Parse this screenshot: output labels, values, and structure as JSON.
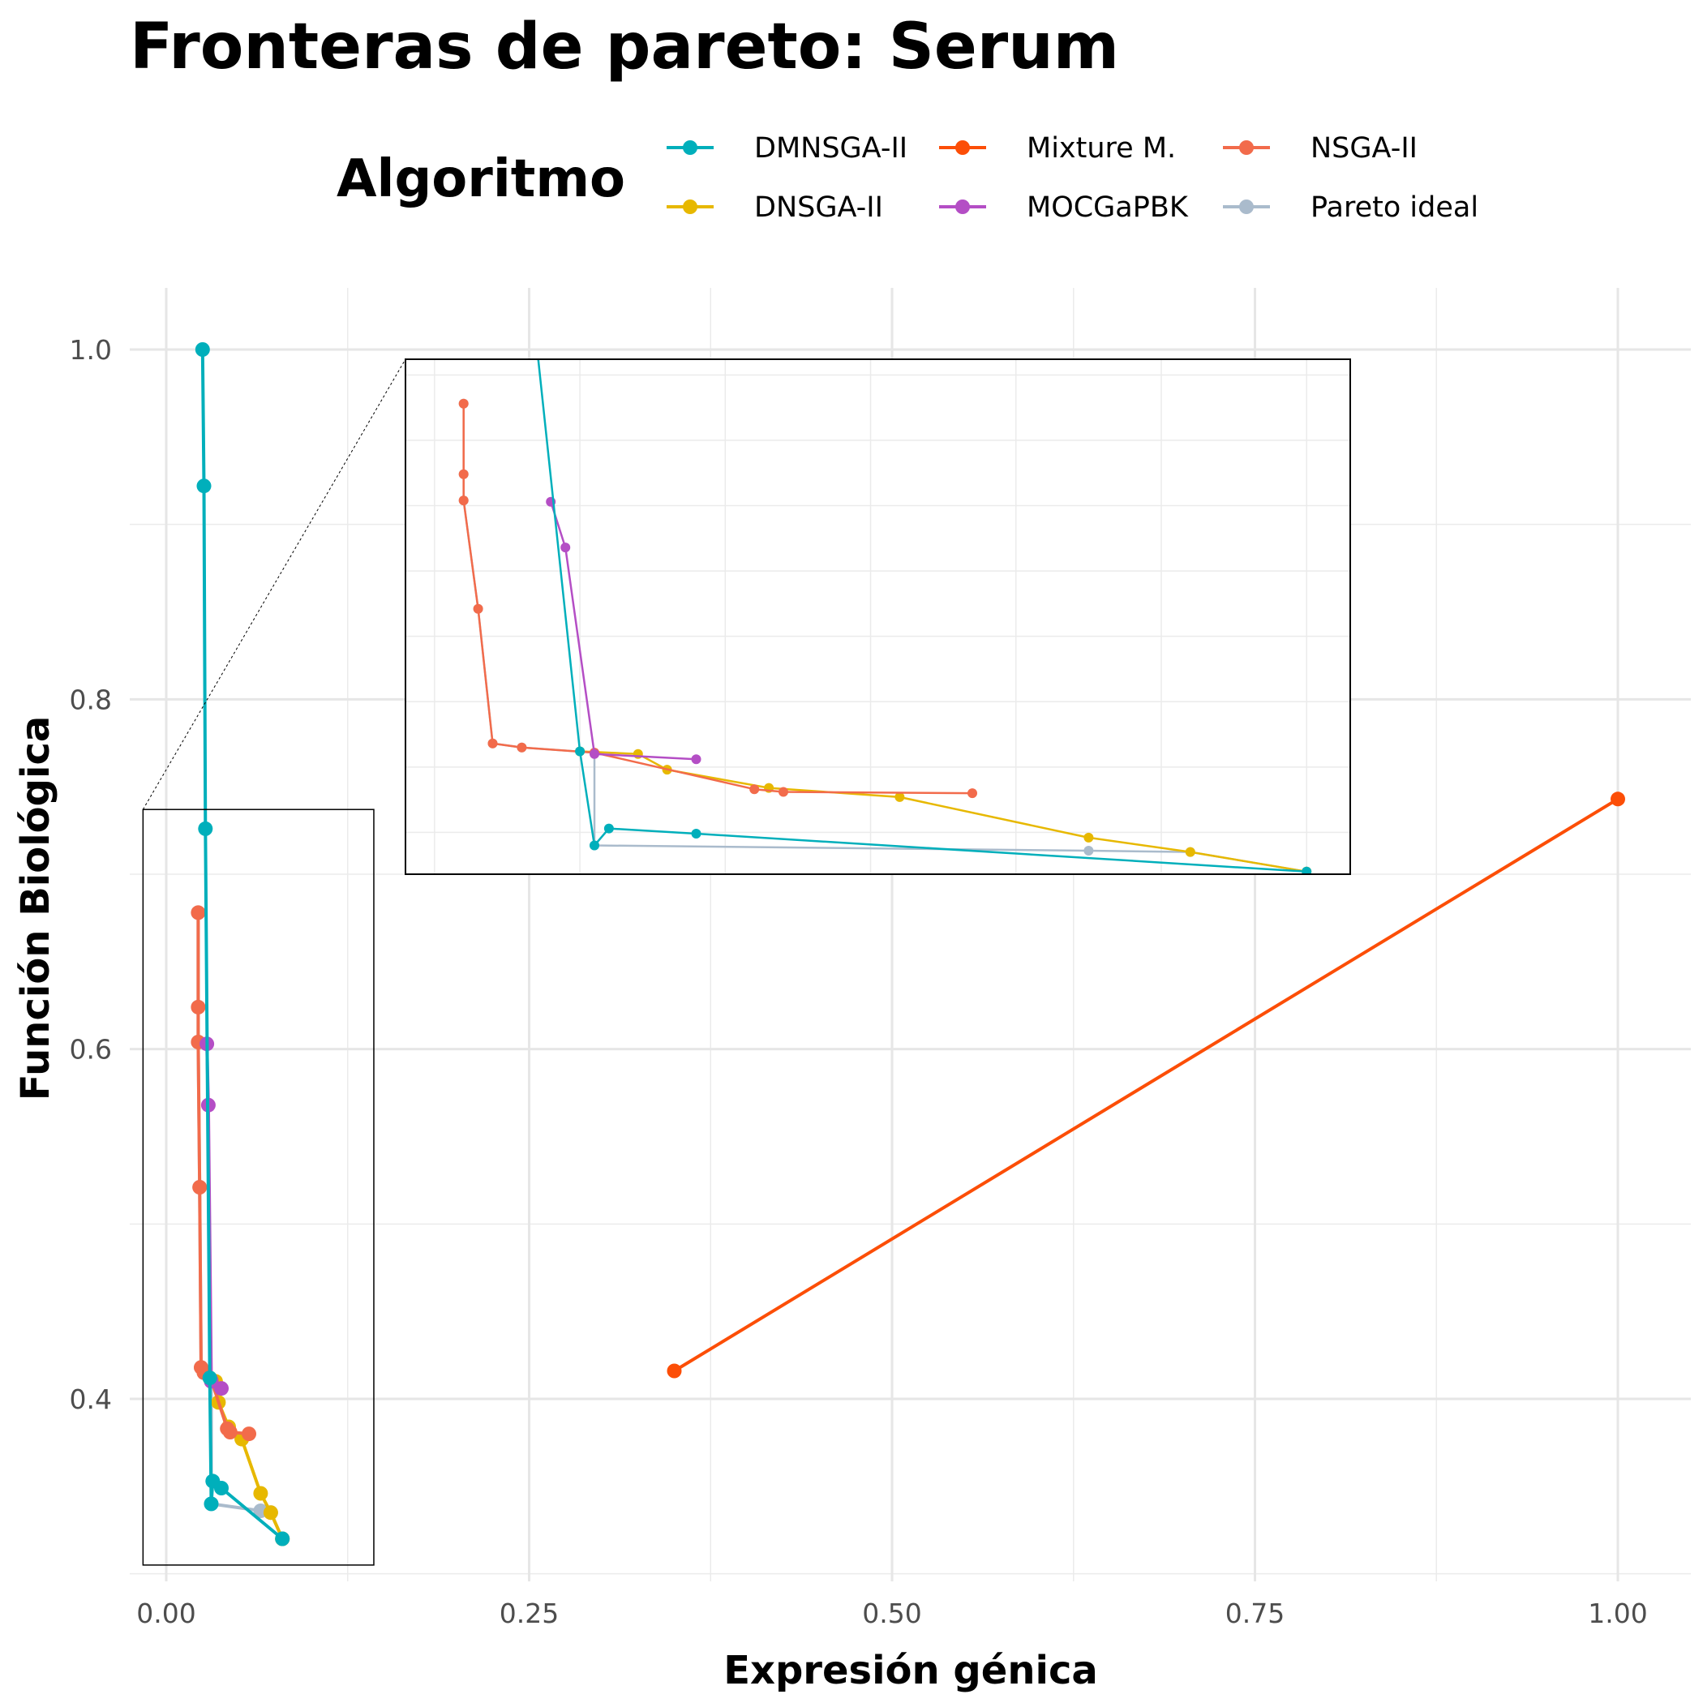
{
  "chart_data": {
    "type": "line",
    "title": "Fronteras de pareto: Serum",
    "xlabel": "Expresión génica",
    "ylabel": "Función Biológica",
    "xlim": [
      -0.02,
      1.05
    ],
    "ylim": [
      0.3,
      1.03
    ],
    "x_ticks": [
      0.0,
      0.25,
      0.5,
      0.75,
      1.0
    ],
    "x_tick_labels": [
      "0.00",
      "0.25",
      "0.50",
      "0.75",
      "1.00"
    ],
    "y_ticks": [
      0.4,
      0.6,
      0.8,
      1.0
    ],
    "y_tick_labels": [
      "0.4",
      "0.6",
      "0.8",
      "1.0"
    ],
    "grid": true,
    "legend": {
      "title": "Algoritmo",
      "position": "top",
      "columns": 3
    },
    "series": [
      {
        "name": "DMNSGA-II",
        "color": "#00AFBB",
        "points": [
          [
            0.025,
            1.0
          ],
          [
            0.026,
            0.922
          ],
          [
            0.027,
            0.726
          ],
          [
            0.03,
            0.412
          ],
          [
            0.031,
            0.34
          ],
          [
            0.032,
            0.353
          ],
          [
            0.038,
            0.349
          ],
          [
            0.08,
            0.32
          ]
        ]
      },
      {
        "name": "DNSGA-II",
        "color": "#E7B800",
        "points": [
          [
            0.03,
            0.412
          ],
          [
            0.034,
            0.41
          ],
          [
            0.036,
            0.398
          ],
          [
            0.043,
            0.384
          ],
          [
            0.052,
            0.377
          ],
          [
            0.065,
            0.346
          ],
          [
            0.072,
            0.335
          ],
          [
            0.08,
            0.32
          ]
        ]
      },
      {
        "name": "Mixture M.",
        "color": "#FC4E07",
        "points": [
          [
            0.35,
            0.416
          ],
          [
            1.0,
            0.743
          ]
        ]
      },
      {
        "name": "MOCGaPBK",
        "color": "#B44EC5",
        "points": [
          [
            0.028,
            0.603
          ],
          [
            0.029,
            0.568
          ],
          [
            0.031,
            0.41
          ],
          [
            0.038,
            0.406
          ]
        ]
      },
      {
        "name": "NSGA-II",
        "color": "#F26B4B",
        "points": [
          [
            0.022,
            0.678
          ],
          [
            0.022,
            0.624
          ],
          [
            0.022,
            0.604
          ],
          [
            0.023,
            0.521
          ],
          [
            0.024,
            0.418
          ],
          [
            0.026,
            0.415
          ],
          [
            0.031,
            0.411
          ],
          [
            0.042,
            0.383
          ],
          [
            0.044,
            0.381
          ],
          [
            0.057,
            0.38
          ]
        ]
      },
      {
        "name": "Pareto ideal",
        "color": "#AABBCC",
        "points": [
          [
            0.022,
            0.678
          ],
          [
            0.022,
            0.624
          ],
          [
            0.022,
            0.604
          ],
          [
            0.023,
            0.521
          ],
          [
            0.024,
            0.418
          ],
          [
            0.026,
            0.415
          ],
          [
            0.031,
            0.411
          ],
          [
            0.031,
            0.34
          ],
          [
            0.065,
            0.336
          ],
          [
            0.072,
            0.335
          ],
          [
            0.08,
            0.32
          ]
        ]
      }
    ],
    "inset": {
      "source_xlim": [
        -0.016,
        0.143
      ],
      "source_ylim": [
        0.305,
        0.737
      ]
    }
  }
}
